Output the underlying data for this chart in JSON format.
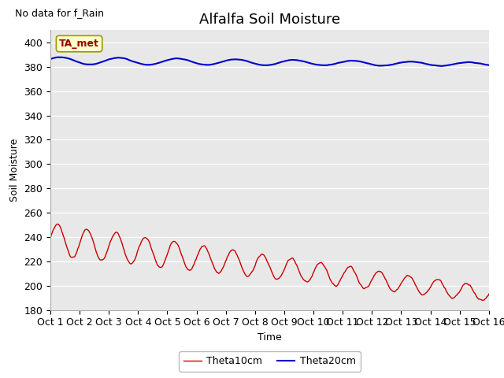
{
  "title": "Alfalfa Soil Moisture",
  "xlabel": "Time",
  "ylabel": "Soil Moisture",
  "note": "No data for f_Rain",
  "ta_met_label": "TA_met",
  "ylim": [
    180,
    410
  ],
  "yticks": [
    180,
    200,
    220,
    240,
    260,
    280,
    300,
    320,
    340,
    360,
    380,
    400
  ],
  "x_tick_labels": [
    "Oct 1",
    "Oct 2",
    "Oct 3",
    "Oct 4",
    "Oct 5",
    "Oct 6",
    "Oct 7",
    "Oct 8",
    "Oct 9",
    "Oct 10",
    "Oct 11",
    "Oct 12",
    "Oct 13",
    "Oct 14",
    "Oct 15",
    "Oct 16"
  ],
  "plot_bg_color": "#e8e8e8",
  "fig_bg_color": "#ffffff",
  "theta10_color": "#cc0000",
  "theta20_color": "#0000cc",
  "legend_labels": [
    "Theta10cm",
    "Theta20cm"
  ],
  "title_fontsize": 13,
  "axis_fontsize": 9,
  "tick_fontsize": 9,
  "note_fontsize": 9
}
